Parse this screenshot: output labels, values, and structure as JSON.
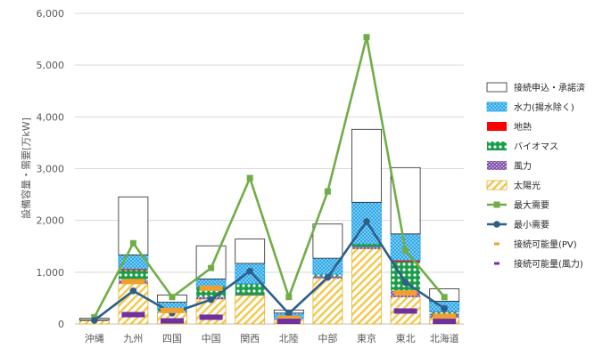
{
  "chart_data": {
    "type": "bar",
    "categories": [
      "沖縄",
      "九州",
      "四国",
      "中国",
      "関西",
      "北陸",
      "中部",
      "東京",
      "東北",
      "北海道"
    ],
    "ylabel": "設備容量・需要[万kW]",
    "ylim": [
      0,
      6000
    ],
    "yticks": [
      "0",
      "1,000",
      "2,000",
      "3,000",
      "4,000",
      "5,000",
      "6,000"
    ],
    "ytick_values": [
      0,
      1000,
      2000,
      3000,
      4000,
      5000,
      6000
    ],
    "grid": true,
    "legend_position": "right",
    "stack_order": [
      "太陽光",
      "風力",
      "バイオマス",
      "地熱",
      "水力(揚水除く)",
      "接続申込・承諾済"
    ],
    "legend": [
      "接続申込・承諾済",
      "水力(揚水除く)",
      "地熱",
      "バイオマス",
      "風力",
      "太陽光",
      "最大需要",
      "最小需要",
      "接続可能量(PV)",
      "接続可能量(風力)"
    ],
    "series": [
      {
        "name": "太陽光",
        "kind": "stacked-bar",
        "color": "#f2c84b",
        "values": [
          60,
          780,
          220,
          480,
          550,
          80,
          880,
          1450,
          520,
          120
        ]
      },
      {
        "name": "風力",
        "kind": "stacked-bar",
        "color": "#7f4fa8",
        "values": [
          10,
          60,
          20,
          40,
          10,
          20,
          40,
          40,
          120,
          60
        ]
      },
      {
        "name": "バイオマス",
        "kind": "stacked-bar",
        "color": "#1a9d48",
        "values": [
          10,
          200,
          60,
          200,
          220,
          10,
          40,
          60,
          560,
          50
        ]
      },
      {
        "name": "地熱",
        "kind": "stacked-bar",
        "color": "#ff0000",
        "values": [
          0,
          25,
          0,
          0,
          0,
          0,
          0,
          0,
          30,
          5
        ]
      },
      {
        "name": "水力(揚水除く)",
        "kind": "stacked-bar",
        "color": "#2aa7e8",
        "values": [
          0,
          270,
          120,
          150,
          390,
          100,
          310,
          800,
          510,
          205
        ]
      },
      {
        "name": "接続申込・承諾済",
        "kind": "stacked-bar",
        "color": "#ffffff",
        "values": [
          30,
          1120,
          140,
          640,
          470,
          60,
          660,
          1410,
          1280,
          240
        ]
      },
      {
        "name": "最大需要",
        "kind": "line",
        "color": "#70ad47",
        "values": [
          130,
          1560,
          520,
          1080,
          2820,
          520,
          2560,
          5540,
          1420,
          520
        ]
      },
      {
        "name": "最小需要",
        "kind": "line",
        "color": "#2e5f8a",
        "values": [
          70,
          640,
          210,
          470,
          1020,
          200,
          900,
          1980,
          800,
          300
        ]
      },
      {
        "name": "接続可能量(PV)",
        "kind": "marker",
        "color": "#f0a030",
        "values": [
          null,
          820,
          260,
          690,
          null,
          110,
          null,
          null,
          600,
          150
        ]
      },
      {
        "name": "接続可能量(風力)",
        "kind": "marker",
        "color": "#7030a0",
        "values": [
          null,
          180,
          60,
          130,
          null,
          50,
          null,
          null,
          250,
          50
        ]
      }
    ]
  }
}
